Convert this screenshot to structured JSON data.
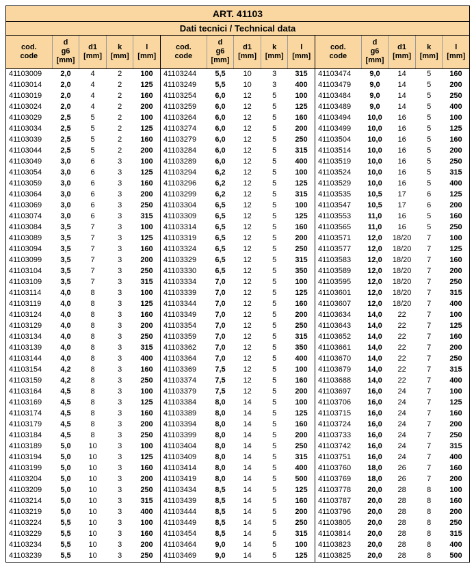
{
  "title": "ART. 41103",
  "subtitle": "Dati tecnici / Technical data",
  "headers": [
    "cod.<br>code",
    "d<br>g6<br>[mm]",
    "d1<br>[mm]",
    "k<br>[mm]",
    "l<br>[mm]"
  ],
  "colors": {
    "header_bg": "#fad7a0",
    "border": "#000000",
    "grid": "#999999"
  },
  "blocks": [
    [
      [
        "41103009",
        "2,0",
        "4",
        "2",
        "100"
      ],
      [
        "41103014",
        "2,0",
        "4",
        "2",
        "125"
      ],
      [
        "41103019",
        "2,0",
        "4",
        "2",
        "160"
      ],
      [
        "41103024",
        "2,0",
        "4",
        "2",
        "200"
      ],
      [
        "41103029",
        "2,5",
        "5",
        "2",
        "100"
      ],
      [
        "41103034",
        "2,5",
        "5",
        "2",
        "125"
      ],
      [
        "41103039",
        "2,5",
        "5",
        "2",
        "160"
      ],
      [
        "41103044",
        "2,5",
        "5",
        "2",
        "200"
      ],
      [
        "41103049",
        "3,0",
        "6",
        "3",
        "100"
      ],
      [
        "41103054",
        "3,0",
        "6",
        "3",
        "125"
      ],
      [
        "41103059",
        "3,0",
        "6",
        "3",
        "160"
      ],
      [
        "41103064",
        "3,0",
        "6",
        "3",
        "200"
      ],
      [
        "41103069",
        "3,0",
        "6",
        "3",
        "250"
      ],
      [
        "41103074",
        "3,0",
        "6",
        "3",
        "315"
      ],
      [
        "41103084",
        "3,5",
        "7",
        "3",
        "100"
      ],
      [
        "41103089",
        "3,5",
        "7",
        "3",
        "125"
      ],
      [
        "41103094",
        "3,5",
        "7",
        "3",
        "160"
      ],
      [
        "41103099",
        "3,5",
        "7",
        "3",
        "200"
      ],
      [
        "41103104",
        "3,5",
        "7",
        "3",
        "250"
      ],
      [
        "41103109",
        "3,5",
        "7",
        "3",
        "315"
      ],
      [
        "41103114",
        "4,0",
        "8",
        "3",
        "100"
      ],
      [
        "41103119",
        "4,0",
        "8",
        "3",
        "125"
      ],
      [
        "41103124",
        "4,0",
        "8",
        "3",
        "160"
      ],
      [
        "41103129",
        "4,0",
        "8",
        "3",
        "200"
      ],
      [
        "41103134",
        "4,0",
        "8",
        "3",
        "250"
      ],
      [
        "41103139",
        "4,0",
        "8",
        "3",
        "315"
      ],
      [
        "41103144",
        "4,0",
        "8",
        "3",
        "400"
      ],
      [
        "41103154",
        "4,2",
        "8",
        "3",
        "160"
      ],
      [
        "41103159",
        "4,2",
        "8",
        "3",
        "250"
      ],
      [
        "41103164",
        "4,5",
        "8",
        "3",
        "100"
      ],
      [
        "41103169",
        "4,5",
        "8",
        "3",
        "125"
      ],
      [
        "41103174",
        "4,5",
        "8",
        "3",
        "160"
      ],
      [
        "41103179",
        "4,5",
        "8",
        "3",
        "200"
      ],
      [
        "41103184",
        "4,5",
        "8",
        "3",
        "250"
      ],
      [
        "41103189",
        "5,0",
        "10",
        "3",
        "100"
      ],
      [
        "41103194",
        "5,0",
        "10",
        "3",
        "125"
      ],
      [
        "41103199",
        "5,0",
        "10",
        "3",
        "160"
      ],
      [
        "41103204",
        "5,0",
        "10",
        "3",
        "200"
      ],
      [
        "41103209",
        "5,0",
        "10",
        "3",
        "250"
      ],
      [
        "41103214",
        "5,0",
        "10",
        "3",
        "315"
      ],
      [
        "41103219",
        "5,0",
        "10",
        "3",
        "400"
      ],
      [
        "41103224",
        "5,5",
        "10",
        "3",
        "100"
      ],
      [
        "41103229",
        "5,5",
        "10",
        "3",
        "160"
      ],
      [
        "41103234",
        "5,5",
        "10",
        "3",
        "200"
      ],
      [
        "41103239",
        "5,5",
        "10",
        "3",
        "250"
      ]
    ],
    [
      [
        "41103244",
        "5,5",
        "10",
        "3",
        "315"
      ],
      [
        "41103249",
        "5,5",
        "10",
        "3",
        "400"
      ],
      [
        "41103254",
        "6,0",
        "12",
        "5",
        "100"
      ],
      [
        "41103259",
        "6,0",
        "12",
        "5",
        "125"
      ],
      [
        "41103264",
        "6,0",
        "12",
        "5",
        "160"
      ],
      [
        "41103274",
        "6,0",
        "12",
        "5",
        "200"
      ],
      [
        "41103279",
        "6,0",
        "12",
        "5",
        "250"
      ],
      [
        "41103284",
        "6,0",
        "12",
        "5",
        "315"
      ],
      [
        "41103289",
        "6,0",
        "12",
        "5",
        "400"
      ],
      [
        "41103294",
        "6,2",
        "12",
        "5",
        "100"
      ],
      [
        "41103296",
        "6,2",
        "12",
        "5",
        "125"
      ],
      [
        "41103299",
        "6,2",
        "12",
        "5",
        "315"
      ],
      [
        "41103304",
        "6,5",
        "12",
        "5",
        "100"
      ],
      [
        "41103309",
        "6,5",
        "12",
        "5",
        "125"
      ],
      [
        "41103314",
        "6,5",
        "12",
        "5",
        "160"
      ],
      [
        "41103319",
        "6,5",
        "12",
        "5",
        "200"
      ],
      [
        "41103324",
        "6,5",
        "12",
        "5",
        "250"
      ],
      [
        "41103329",
        "6,5",
        "12",
        "5",
        "315"
      ],
      [
        "41103330",
        "6,5",
        "12",
        "5",
        "350"
      ],
      [
        "41103334",
        "7,0",
        "12",
        "5",
        "100"
      ],
      [
        "41103339",
        "7,0",
        "12",
        "5",
        "125"
      ],
      [
        "41103344",
        "7,0",
        "12",
        "5",
        "160"
      ],
      [
        "41103349",
        "7,0",
        "12",
        "5",
        "200"
      ],
      [
        "41103354",
        "7,0",
        "12",
        "5",
        "250"
      ],
      [
        "41103359",
        "7,0",
        "12",
        "5",
        "315"
      ],
      [
        "41103362",
        "7,0",
        "12",
        "5",
        "350"
      ],
      [
        "41103364",
        "7,0",
        "12",
        "5",
        "400"
      ],
      [
        "41103369",
        "7,5",
        "12",
        "5",
        "100"
      ],
      [
        "41103374",
        "7,5",
        "12",
        "5",
        "160"
      ],
      [
        "41103379",
        "7,5",
        "12",
        "5",
        "200"
      ],
      [
        "41103384",
        "8,0",
        "14",
        "5",
        "100"
      ],
      [
        "41103389",
        "8,0",
        "14",
        "5",
        "125"
      ],
      [
        "41103394",
        "8,0",
        "14",
        "5",
        "160"
      ],
      [
        "41103399",
        "8,0",
        "14",
        "5",
        "200"
      ],
      [
        "41103404",
        "8,0",
        "14",
        "5",
        "250"
      ],
      [
        "41103409",
        "8,0",
        "14",
        "5",
        "315"
      ],
      [
        "41103414",
        "8,0",
        "14",
        "5",
        "400"
      ],
      [
        "41103419",
        "8,0",
        "14",
        "5",
        "500"
      ],
      [
        "41103434",
        "8,5",
        "14",
        "5",
        "125"
      ],
      [
        "41103439",
        "8,5",
        "14",
        "5",
        "160"
      ],
      [
        "41103444",
        "8,5",
        "14",
        "5",
        "200"
      ],
      [
        "41103449",
        "8,5",
        "14",
        "5",
        "250"
      ],
      [
        "41103454",
        "8,5",
        "14",
        "5",
        "315"
      ],
      [
        "41103464",
        "9,0",
        "14",
        "5",
        "100"
      ],
      [
        "41103469",
        "9,0",
        "14",
        "5",
        "125"
      ]
    ],
    [
      [
        "41103474",
        "9,0",
        "14",
        "5",
        "160"
      ],
      [
        "41103479",
        "9,0",
        "14",
        "5",
        "200"
      ],
      [
        "41103484",
        "9,0",
        "14",
        "5",
        "250"
      ],
      [
        "41103489",
        "9,0",
        "14",
        "5",
        "400"
      ],
      [
        "41103494",
        "10,0",
        "16",
        "5",
        "100"
      ],
      [
        "41103499",
        "10,0",
        "16",
        "5",
        "125"
      ],
      [
        "41103504",
        "10,0",
        "16",
        "5",
        "160"
      ],
      [
        "41103514",
        "10,0",
        "16",
        "5",
        "200"
      ],
      [
        "41103519",
        "10,0",
        "16",
        "5",
        "250"
      ],
      [
        "41103524",
        "10,0",
        "16",
        "5",
        "315"
      ],
      [
        "41103529",
        "10,0",
        "16",
        "5",
        "400"
      ],
      [
        "41103535",
        "10,5",
        "17",
        "6",
        "125"
      ],
      [
        "41103547",
        "10,5",
        "17",
        "6",
        "200"
      ],
      [
        "41103553",
        "11,0",
        "16",
        "5",
        "160"
      ],
      [
        "41103565",
        "11,0",
        "16",
        "5",
        "250"
      ],
      [
        "41103571",
        "12,0",
        "18/20",
        "7",
        "100"
      ],
      [
        "41103577",
        "12,0",
        "18/20",
        "7",
        "125"
      ],
      [
        "41103583",
        "12,0",
        "18/20",
        "7",
        "160"
      ],
      [
        "41103589",
        "12,0",
        "18/20",
        "7",
        "200"
      ],
      [
        "41103595",
        "12,0",
        "18/20",
        "7",
        "250"
      ],
      [
        "41103601",
        "12,0",
        "18/20",
        "7",
        "315"
      ],
      [
        "41103607",
        "12,0",
        "18/20",
        "7",
        "400"
      ],
      [
        "41103634",
        "14,0",
        "22",
        "7",
        "100"
      ],
      [
        "41103643",
        "14,0",
        "22",
        "7",
        "125"
      ],
      [
        "41103652",
        "14,0",
        "22",
        "7",
        "160"
      ],
      [
        "41103661",
        "14,0",
        "22",
        "7",
        "200"
      ],
      [
        "41103670",
        "14,0",
        "22",
        "7",
        "250"
      ],
      [
        "41103679",
        "14,0",
        "22",
        "7",
        "315"
      ],
      [
        "41103688",
        "14,0",
        "22",
        "7",
        "400"
      ],
      [
        "41103697",
        "16,0",
        "24",
        "7",
        "100"
      ],
      [
        "41103706",
        "16,0",
        "24",
        "7",
        "125"
      ],
      [
        "41103715",
        "16,0",
        "24",
        "7",
        "160"
      ],
      [
        "41103724",
        "16,0",
        "24",
        "7",
        "200"
      ],
      [
        "41103733",
        "16,0",
        "24",
        "7",
        "250"
      ],
      [
        "41103742",
        "16,0",
        "24",
        "7",
        "315"
      ],
      [
        "41103751",
        "16,0",
        "24",
        "7",
        "400"
      ],
      [
        "41103760",
        "18,0",
        "26",
        "7",
        "160"
      ],
      [
        "41103769",
        "18,0",
        "26",
        "7",
        "200"
      ],
      [
        "41103778",
        "20,0",
        "28",
        "8",
        "100"
      ],
      [
        "41103787",
        "20,0",
        "28",
        "8",
        "160"
      ],
      [
        "41103796",
        "20,0",
        "28",
        "8",
        "200"
      ],
      [
        "41103805",
        "20,0",
        "28",
        "8",
        "250"
      ],
      [
        "41103814",
        "20,0",
        "28",
        "8",
        "315"
      ],
      [
        "41103823",
        "20,0",
        "28",
        "8",
        "400"
      ],
      [
        "41103825",
        "20,0",
        "28",
        "8",
        "500"
      ]
    ]
  ]
}
